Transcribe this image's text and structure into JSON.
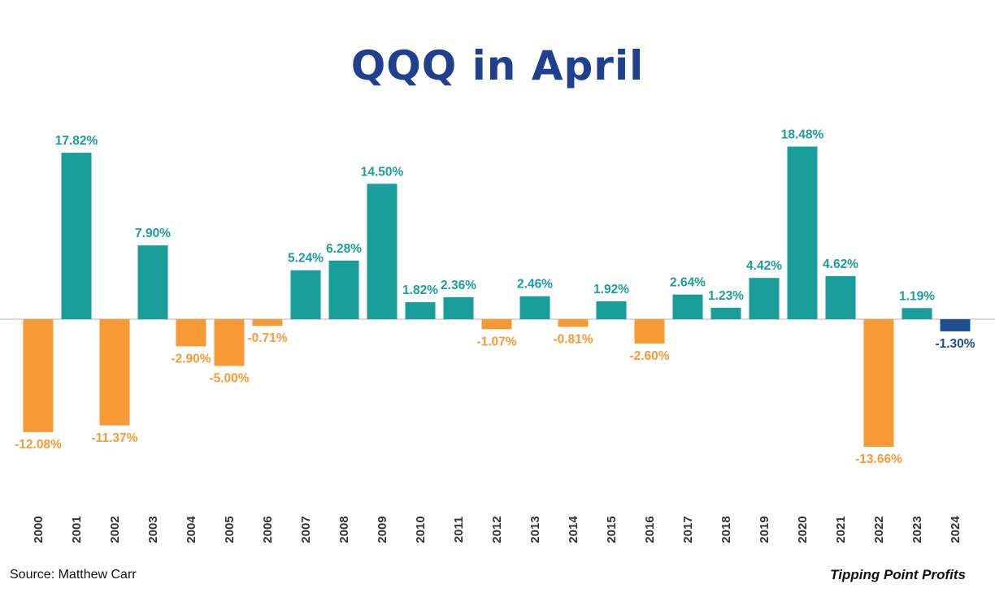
{
  "chart_data": {
    "type": "bar",
    "title": "QQQ in April",
    "categories": [
      "2000",
      "2001",
      "2002",
      "2003",
      "2004",
      "2005",
      "2006",
      "2007",
      "2008",
      "2009",
      "2010",
      "2011",
      "2012",
      "2013",
      "2014",
      "2015",
      "2016",
      "2017",
      "2018",
      "2019",
      "2020",
      "2021",
      "2022",
      "2023",
      "2024"
    ],
    "values": [
      -12.08,
      17.82,
      -11.37,
      7.9,
      -2.9,
      -5.0,
      -0.71,
      5.24,
      6.28,
      14.5,
      1.82,
      2.36,
      -1.07,
      2.46,
      -0.81,
      1.92,
      -2.6,
      2.64,
      1.23,
      4.42,
      18.48,
      4.62,
      -13.66,
      1.19,
      -1.3
    ],
    "data_labels": [
      "-12.08%",
      "17.82%",
      "-11.37%",
      "7.90%",
      "-2.90%",
      "-5.00%",
      "-0.71%",
      "5.24%",
      "6.28%",
      "14.50%",
      "1.82%",
      "2.36%",
      "-1.07%",
      "2.46%",
      "-0.81%",
      "1.92%",
      "-2.60%",
      "2.64%",
      "1.23%",
      "4.42%",
      "18.48%",
      "4.62%",
      "-13.66%",
      "1.19%",
      "-1.30%"
    ],
    "highlight_index": 24,
    "xlabel": "",
    "ylabel": "",
    "ylim": [
      -15,
      20
    ],
    "grid": false,
    "colors": {
      "title": "#1f3f8f",
      "positive": "#1a9e9b",
      "negative": "#f79a35",
      "highlight": "#1f4f8f",
      "zero_line": "#cccccc"
    }
  },
  "footer": {
    "source": "Source: Matthew Carr",
    "brand": "Tipping Point Profits"
  }
}
